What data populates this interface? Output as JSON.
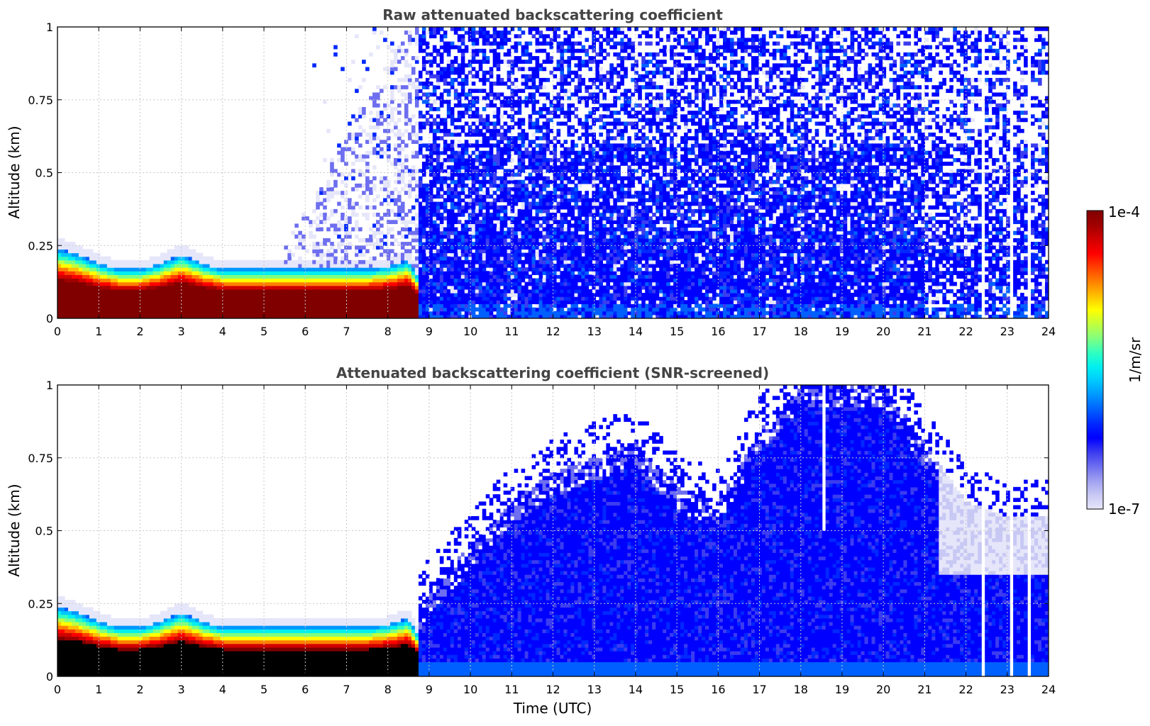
{
  "figure": {
    "colorbar": {
      "max_label": "1e-4",
      "min_label": "1e-7",
      "unit_label": "1/m/sr",
      "colormap": [
        "#e6e6fa",
        "#c8c8f5",
        "#a0a0f0",
        "#6e6ef0",
        "#3c3cf0",
        "#0000ff",
        "#0028ff",
        "#0060ff",
        "#0096ff",
        "#00c8ff",
        "#00f0f0",
        "#30ffc0",
        "#80ff80",
        "#c0ff40",
        "#ffff00",
        "#ffc000",
        "#ff8000",
        "#ff4000",
        "#ff0000",
        "#d00000",
        "#a00000",
        "#800000"
      ]
    },
    "shared_x": {
      "label": "Time (UTC)",
      "ticks": [
        "0",
        "1",
        "2",
        "3",
        "4",
        "5",
        "6",
        "7",
        "8",
        "9",
        "10",
        "11",
        "12",
        "13",
        "14",
        "15",
        "16",
        "17",
        "18",
        "19",
        "20",
        "21",
        "22",
        "23",
        "24"
      ]
    }
  },
  "chart_data": [
    {
      "type": "heatmap",
      "title": "Raw attenuated backscattering coefficient",
      "xlabel": "",
      "ylabel": "Altitude (km)",
      "xlim": [
        0,
        24
      ],
      "ylim": [
        0,
        1
      ],
      "yticks": [
        "0",
        "0.25",
        "0.5",
        "0.75",
        "1"
      ],
      "grid": true,
      "colorscale": "log",
      "clim": [
        1e-07,
        0.0001
      ],
      "profile": {
        "layer_top_time_hours": [
          0,
          0.5,
          1,
          1.5,
          2,
          2.5,
          3,
          3.5,
          4,
          5,
          6,
          7,
          7.5,
          8,
          8.5,
          8.9
        ],
        "layer_top_altitude_km": [
          0.24,
          0.22,
          0.19,
          0.17,
          0.17,
          0.19,
          0.22,
          0.19,
          0.17,
          0.17,
          0.17,
          0.17,
          0.17,
          0.18,
          0.2,
          0.1
        ],
        "saturated_core": "dark red",
        "daytime_aerosol_start_hours": 8.6,
        "noise_reaches_top": true,
        "dropouts_hours": [
          22.4,
          23.1,
          23.5
        ]
      }
    },
    {
      "type": "heatmap",
      "title": "Attenuated backscattering coefficient (SNR-screened)",
      "xlabel": "Time (UTC)",
      "ylabel": "Altitude (km)",
      "xlim": [
        0,
        24
      ],
      "ylim": [
        0,
        1
      ],
      "yticks": [
        "0",
        "0.25",
        "0.5",
        "0.75",
        "1"
      ],
      "grid": true,
      "colorscale": "log",
      "clim": [
        1e-07,
        0.0001
      ],
      "profile": {
        "layer_top_time_hours": [
          0,
          0.5,
          1,
          1.5,
          2,
          2.5,
          3,
          3.5,
          4,
          5,
          6,
          7,
          7.5,
          8,
          8.5,
          8.9
        ],
        "layer_top_altitude_km": [
          0.24,
          0.22,
          0.19,
          0.17,
          0.17,
          0.19,
          0.22,
          0.19,
          0.17,
          0.17,
          0.17,
          0.17,
          0.17,
          0.18,
          0.2,
          0.1
        ],
        "saturated_core": "black",
        "boundary_layer_top_time_hours": [
          8.6,
          9,
          10,
          11,
          12,
          13,
          14,
          15,
          16,
          17,
          18,
          19,
          20,
          21,
          22,
          23,
          23.9
        ],
        "boundary_layer_top_altitude_km": [
          0.2,
          0.3,
          0.45,
          0.6,
          0.7,
          0.75,
          0.8,
          0.65,
          0.6,
          0.85,
          1.0,
          1.0,
          1.0,
          0.8,
          0.6,
          0.55,
          0.55
        ],
        "dropouts_hours": [
          18.55,
          22.4,
          23.1,
          23.5
        ]
      }
    }
  ]
}
